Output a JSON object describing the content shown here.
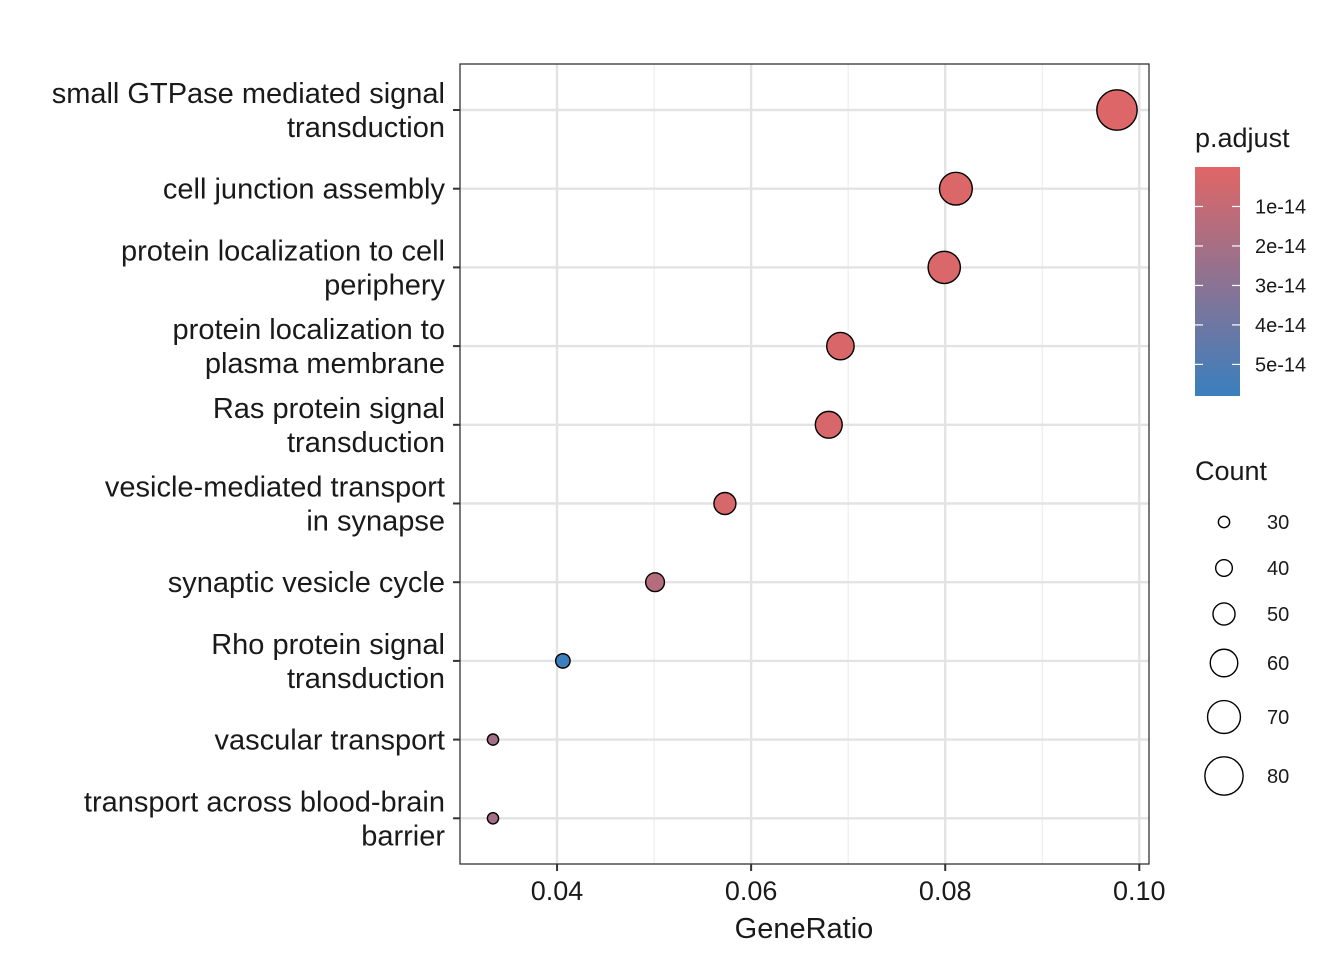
{
  "chart_data": {
    "type": "scatter",
    "xlabel": "GeneRatio",
    "ylabel": "",
    "xlim": [
      0.03,
      0.101
    ],
    "x_ticks": [
      0.04,
      0.06,
      0.08,
      0.1
    ],
    "x_tick_labels": [
      "0.04",
      "0.06",
      "0.08",
      "0.10"
    ],
    "x_minor_grid": [
      0.03,
      0.05,
      0.07,
      0.09
    ],
    "grid": true,
    "legend_position": "right",
    "points": [
      {
        "term": [
          "small GTPase mediated signal",
          "transduction"
        ],
        "x": 0.0977,
        "count": 82,
        "p_adjust": 1e-15
      },
      {
        "term": [
          "cell junction assembly"
        ],
        "x": 0.0811,
        "count": 68,
        "p_adjust": 1.5e-15
      },
      {
        "term": [
          "protein localization to cell",
          "periphery"
        ],
        "x": 0.0799,
        "count": 67,
        "p_adjust": 2e-15
      },
      {
        "term": [
          "protein localization to",
          "plasma membrane"
        ],
        "x": 0.0692,
        "count": 58,
        "p_adjust": 2.5e-15
      },
      {
        "term": [
          "Ras protein signal",
          "transduction"
        ],
        "x": 0.068,
        "count": 57,
        "p_adjust": 3e-15
      },
      {
        "term": [
          "vesicle-mediated transport",
          "in synapse"
        ],
        "x": 0.0573,
        "count": 48,
        "p_adjust": 3.5e-15
      },
      {
        "term": [
          "synaptic vesicle cycle"
        ],
        "x": 0.0501,
        "count": 42,
        "p_adjust": 1.5e-14
      },
      {
        "term": [
          "Rho protein signal",
          "transduction"
        ],
        "x": 0.0406,
        "count": 34,
        "p_adjust": 5.7e-14
      },
      {
        "term": [
          "vascular transport"
        ],
        "x": 0.0334,
        "count": 28,
        "p_adjust": 2.1e-14
      },
      {
        "term": [
          "transport across blood-brain",
          "barrier"
        ],
        "x": 0.0334,
        "count": 28,
        "p_adjust": 2.1e-14
      }
    ],
    "color_legend": {
      "title": "p.adjust",
      "range": [
        0,
        5.8e-14
      ],
      "low_color": "#E06666",
      "high_color": "#3A7FBE",
      "ticks": [
        1e-14,
        2e-14,
        3e-14,
        4e-14,
        5e-14
      ],
      "tick_labels": [
        "1e-14",
        "2e-14",
        "3e-14",
        "4e-14",
        "5e-14"
      ]
    },
    "size_legend": {
      "title": "Count",
      "values": [
        30,
        40,
        50,
        60,
        70,
        80
      ],
      "labels": [
        "30",
        "40",
        "50",
        "60",
        "70",
        "80"
      ]
    }
  }
}
